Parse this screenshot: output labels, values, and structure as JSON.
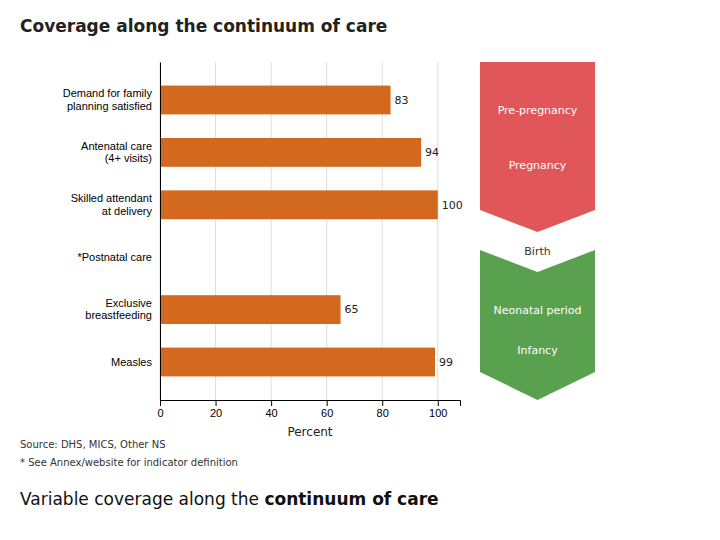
{
  "chart_data": {
    "type": "bar",
    "orientation": "horizontal",
    "title": "Coverage along the continuum of care",
    "xlabel": "Percent",
    "categories": [
      "Demand for family\nplanning satisfied",
      "Antenatal care\n(4+ visits)",
      "Skilled attendant\nat delivery",
      "*Postnatal care",
      "Exclusive\nbreastfeeding",
      "Measles"
    ],
    "values": [
      83,
      94,
      100,
      0,
      65,
      99
    ],
    "value_labels": [
      "83",
      "94",
      "100",
      null,
      "65",
      "99"
    ],
    "data_labels": true,
    "color": "#D2691E",
    "xlim": [
      0,
      108
    ],
    "xticks": [
      0,
      20,
      40,
      60,
      80,
      100
    ],
    "grid": true,
    "annotations": [
      "Source: DHS, MICS, Other NS",
      "* See Annex/website for indicator definition",
      "Variable coverage along the ",
      "continuum of care",
      "Pre-pregnancy",
      "Pregnancy",
      "Birth",
      "Neonatal period",
      "Infancy"
    ]
  }
}
